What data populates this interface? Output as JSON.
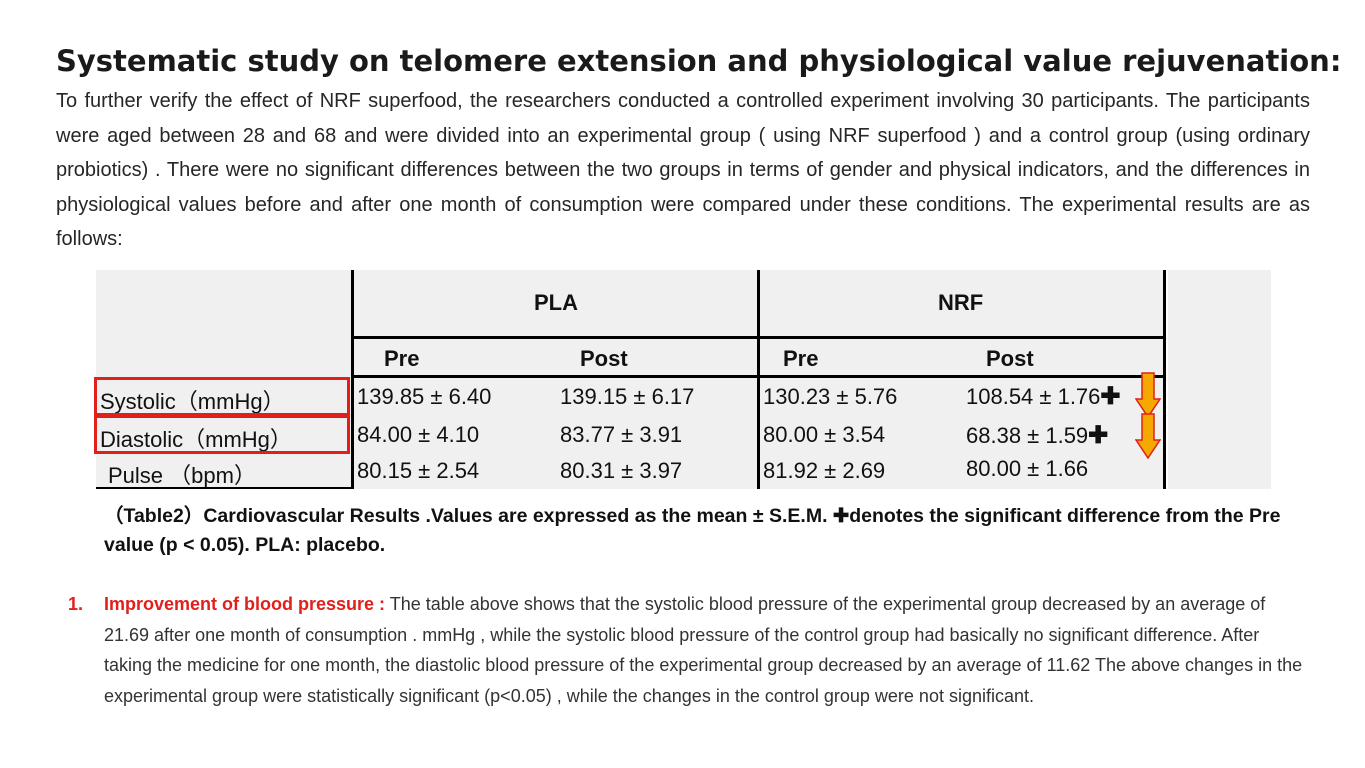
{
  "heading": "Systematic study on telomere extension and physiological value rejuvenation:",
  "intro": "To further verify the effect of NRF superfood, the researchers conducted a controlled experiment involving 30 participants. The participants were aged between 28 and 68 and were divided into an experimental group ( using NRF superfood ) and a control group (using ordinary probiotics) . There were no significant differences between the two groups in terms of gender and physical indicators, and the differences in physiological values before and after one month of consumption were compared under these conditions. The experimental results are as follows:",
  "table": {
    "groups": [
      "PLA",
      "NRF"
    ],
    "subheaders": [
      "Pre",
      "Post",
      "Pre",
      "Post"
    ],
    "rows": [
      {
        "label": "Systolic（mmHg）",
        "values": [
          "139.85 ± 6.40",
          "139.15 ± 6.17",
          "130.23 ± 5.76",
          "108.54 ± 1.76"
        ],
        "significant": true
      },
      {
        "label": "Diastolic（mmHg）",
        "values": [
          "84.00 ± 4.10",
          "83.77 ± 3.91",
          "80.00 ± 3.54",
          "68.38 ± 1.59"
        ],
        "significant": true
      },
      {
        "label": "Pulse （bpm）",
        "values": [
          "80.15 ± 2.54",
          "80.31 ± 3.97",
          "81.92 ± 2.69",
          "80.00 ± 1.66"
        ],
        "significant": false
      }
    ],
    "significance_mark": "✚",
    "highlight_color": "#e0201b",
    "arrow_color": "#f5a800"
  },
  "caption": "（Table2）Cardiovascular Results .Values are expressed as the mean ± S.E.M. ✚denotes the significant difference from the Pre value (p < 0.05). PLA: placebo.",
  "list": {
    "number": "1.",
    "lead": "Improvement of blood pressure :",
    "text": "The table above shows that the systolic blood pressure of the experimental group decreased by an average of 21.69 after one month of consumption . mmHg , while the systolic blood pressure of the control group had basically no significant difference. After taking the medicine for one month, the diastolic blood pressure of the experimental group decreased by an average of 11.62 The above changes in the experimental group were statistically significant (p<0.05) , while the changes in the control group were not significant."
  }
}
